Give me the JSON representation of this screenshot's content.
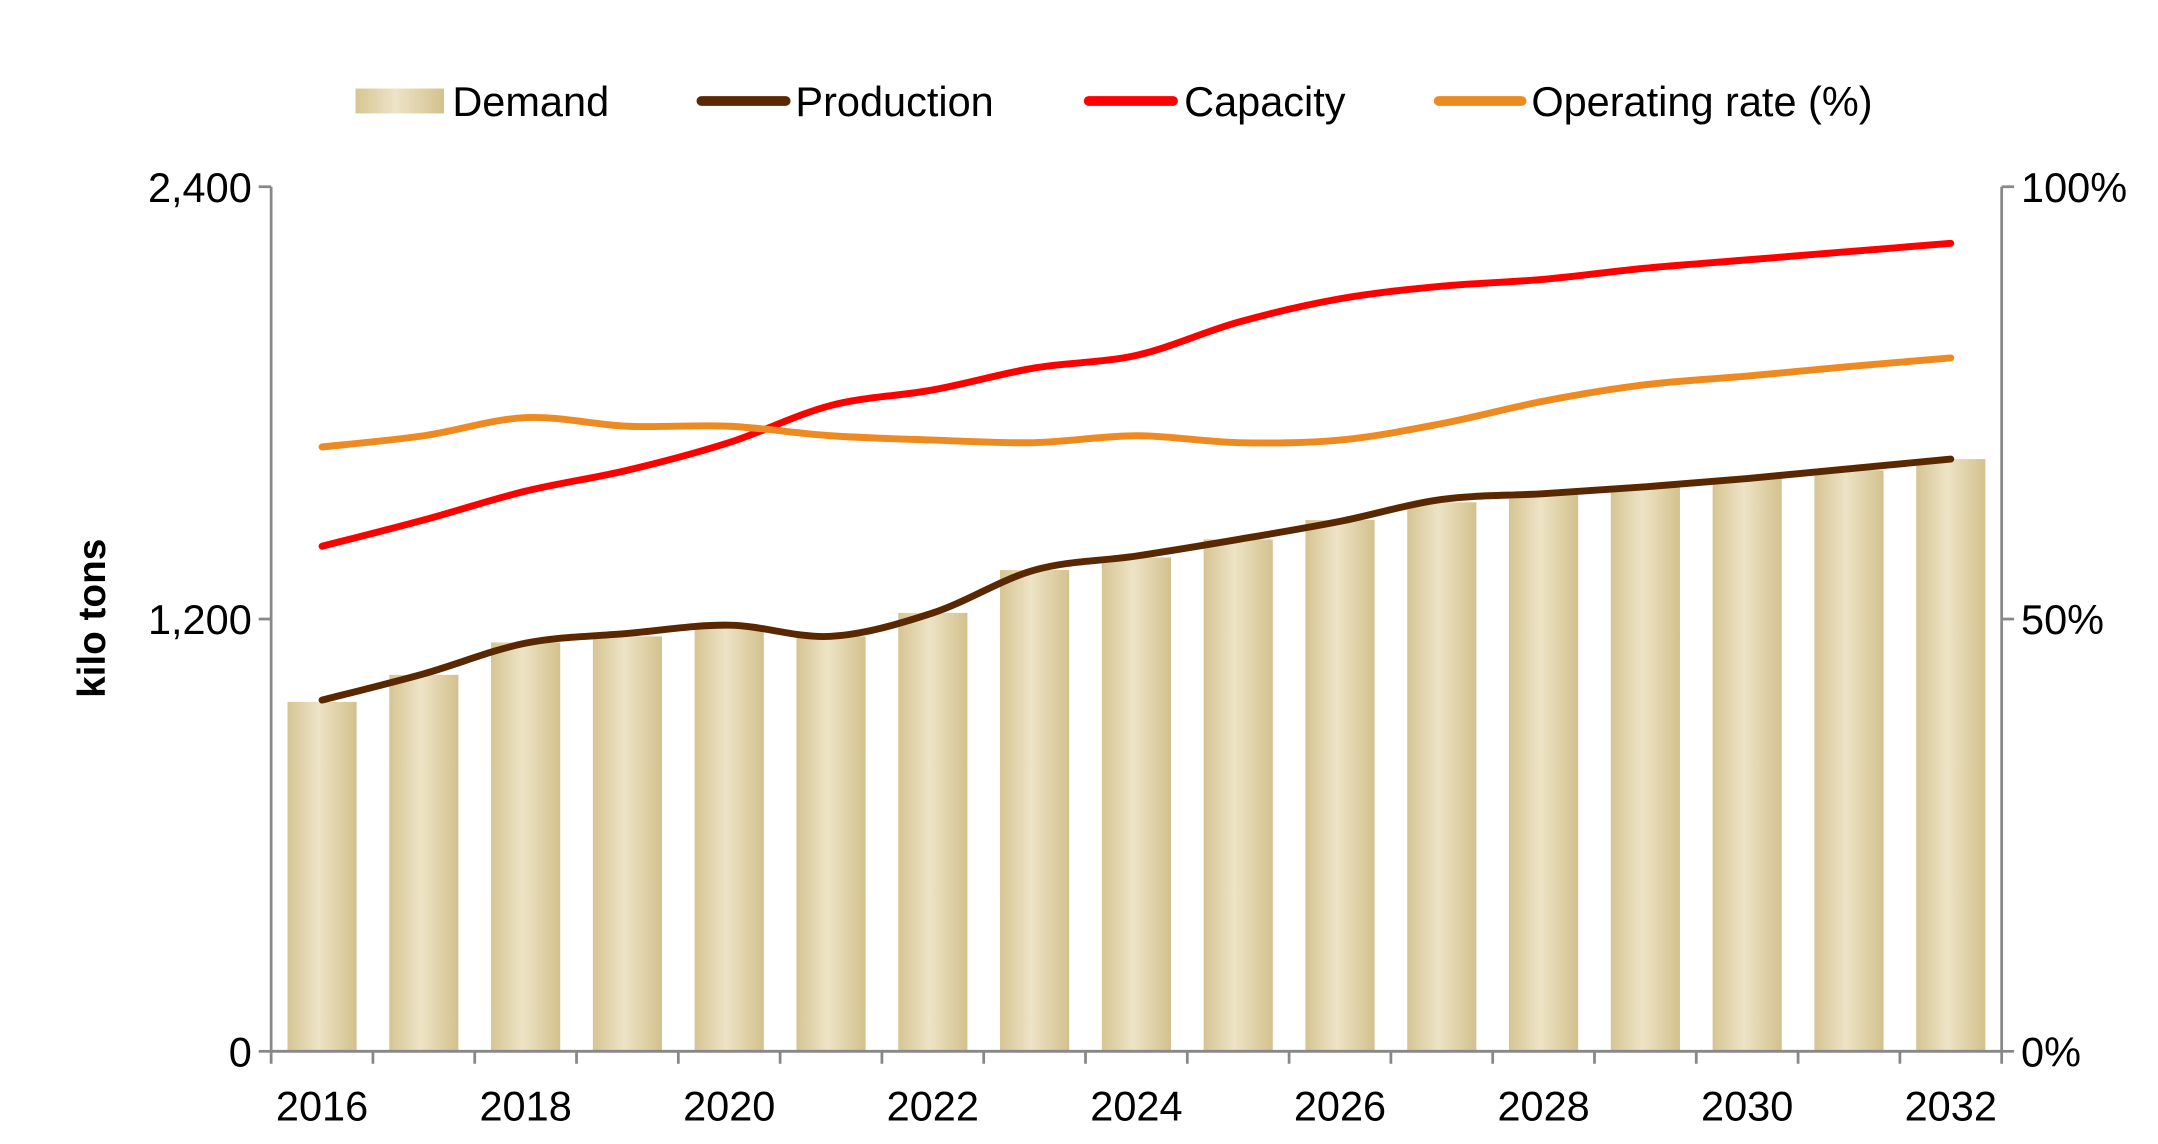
{
  "chart_data": {
    "type": "bar+line",
    "categories": [
      "2016",
      "2017",
      "2018",
      "2019",
      "2020",
      "2021",
      "2022",
      "2023",
      "2024",
      "2025",
      "2026",
      "2027",
      "2028",
      "2029",
      "2030",
      "2031",
      "2032"
    ],
    "x_tick_labels": [
      "2016",
      "2018",
      "2020",
      "2022",
      "2024",
      "2026",
      "2028",
      "2030",
      "2032"
    ],
    "ylabel": "kilo tons",
    "ylim": [
      0,
      2400
    ],
    "y_ticks": [
      "0",
      "1,200",
      "2,400"
    ],
    "y2lim": [
      0,
      100
    ],
    "y2_ticks": [
      "0%",
      "50%",
      "100%"
    ],
    "legend_position": "top",
    "grid": false,
    "series": [
      {
        "name": "Demand",
        "type": "bar",
        "axis": "left",
        "color": "#d9c99a",
        "values": [
          970,
          1045,
          1135,
          1152,
          1180,
          1152,
          1217,
          1336,
          1371,
          1421,
          1475,
          1524,
          1548,
          1567,
          1590,
          1613,
          1644
        ]
      },
      {
        "name": "Production",
        "type": "line",
        "axis": "left",
        "color": "#5a2800",
        "values": [
          975,
          1048,
          1133,
          1160,
          1183,
          1152,
          1217,
          1336,
          1375,
          1421,
          1471,
          1532,
          1548,
          1567,
          1590,
          1617,
          1644
        ]
      },
      {
        "name": "Capacity",
        "type": "line",
        "axis": "left",
        "color": "#ff0000",
        "values": [
          1402,
          1475,
          1555,
          1613,
          1690,
          1793,
          1836,
          1897,
          1932,
          2024,
          2089,
          2124,
          2143,
          2174,
          2197,
          2220,
          2243
        ]
      },
      {
        "name": "Operating rate (%)",
        "type": "line",
        "axis": "right",
        "color": "#ee8a22",
        "values": [
          69.9,
          71.2,
          73.3,
          72.3,
          72.3,
          71.2,
          70.7,
          70.4,
          71.2,
          70.4,
          70.7,
          72.6,
          75.2,
          77.1,
          78.1,
          79.2,
          80.2
        ]
      }
    ]
  }
}
